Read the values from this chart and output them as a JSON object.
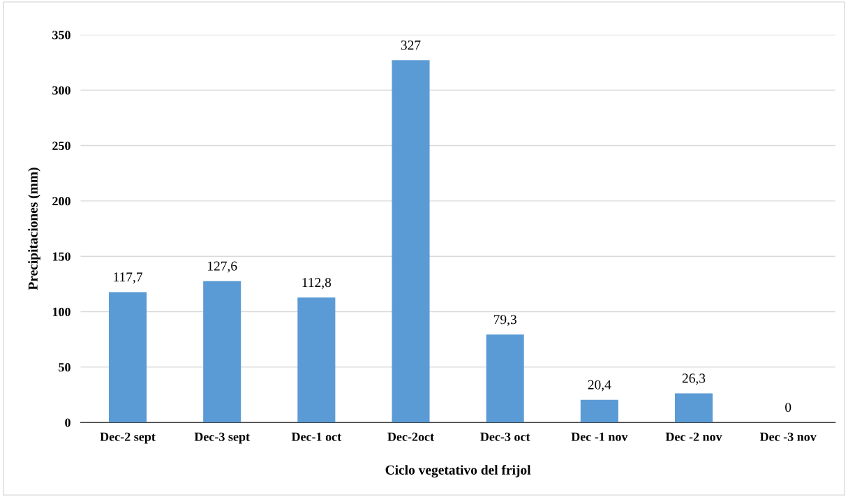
{
  "chart_data": {
    "type": "bar",
    "xlabel": "Ciclo vegetativo del frijol",
    "ylabel": "Precipitaciones (mm)",
    "categories": [
      "Dec-2 sept",
      "Dec-3 sept",
      "Dec-1 oct",
      "Dec-2oct",
      "Dec-3 oct",
      "Dec -1 nov",
      "Dec -2 nov",
      "Dec -3 nov"
    ],
    "values": [
      117.7,
      127.6,
      112.8,
      327,
      79.3,
      20.4,
      26.3,
      0
    ],
    "value_labels": [
      "117,7",
      "127,6",
      "112,8",
      "327",
      "79,3",
      "20,4",
      "26,3",
      "0"
    ],
    "color": "#5b9bd5",
    "ylim": [
      0,
      350
    ],
    "yticks": [
      0,
      50,
      100,
      150,
      200,
      250,
      300,
      350
    ],
    "grid": "y",
    "legend": false
  }
}
